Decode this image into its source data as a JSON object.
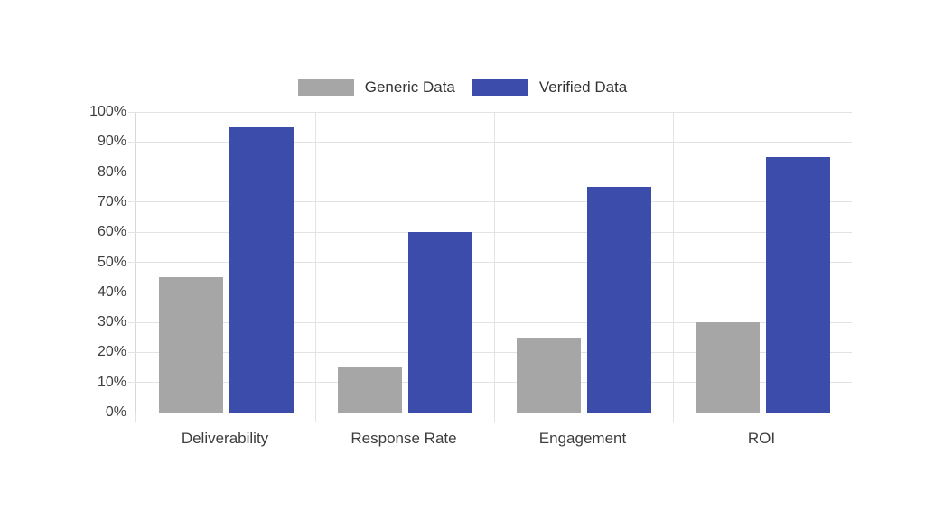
{
  "chart_data": {
    "type": "bar",
    "title": "",
    "categories": [
      "Deliverability",
      "Response Rate",
      "Engagement",
      "ROI"
    ],
    "series": [
      {
        "name": "Generic Data",
        "color": "#a6a6a6",
        "values": [
          45,
          15,
          25,
          30
        ]
      },
      {
        "name": "Verified Data",
        "color": "#3b4cab",
        "values": [
          95,
          60,
          75,
          85
        ]
      }
    ],
    "xlabel": "",
    "ylabel": "",
    "ylim": [
      0,
      100
    ],
    "y_ticks": [
      "0%",
      "10%",
      "20%",
      "30%",
      "40%",
      "50%",
      "60%",
      "70%",
      "80%",
      "90%",
      "100%"
    ],
    "y_tick_values": [
      0,
      10,
      20,
      30,
      40,
      50,
      60,
      70,
      80,
      90,
      100
    ],
    "value_format": "percent",
    "grid": true,
    "legend_position": "top-center"
  }
}
